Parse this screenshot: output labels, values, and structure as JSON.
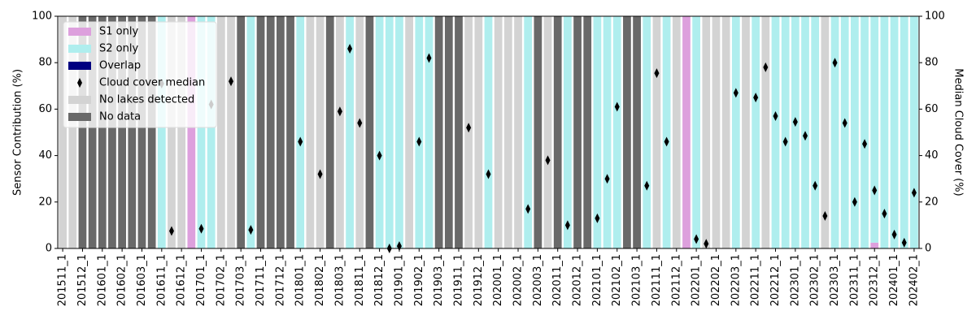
{
  "chart_data": {
    "type": "bar",
    "stacked": true,
    "ylabel": "Sensor Contribution (%)",
    "y2label": "Median Cloud Cover (%)",
    "ylim": [
      0,
      100
    ],
    "yticks": [
      0,
      20,
      40,
      60,
      80,
      100
    ],
    "y2lim": [
      0,
      100
    ],
    "y2ticks": [
      0,
      20,
      40,
      60,
      80,
      100
    ],
    "legend": "upper left",
    "categories": [
      "201511_1",
      null,
      "201512_1",
      null,
      "201601_1",
      null,
      "201602_1",
      null,
      "201603_1",
      null,
      "201611_1",
      null,
      "201612_1",
      null,
      "201701_1",
      null,
      "201702_1",
      null,
      "201703_1",
      null,
      "201711_1",
      null,
      "201712_1",
      null,
      "201801_1",
      null,
      "201802_1",
      null,
      "201803_1",
      null,
      "201811_1",
      null,
      "201812_1",
      null,
      "201901_1",
      null,
      "201902_1",
      null,
      "201903_1",
      null,
      "201911_1",
      null,
      "201912_1",
      null,
      "202001_1",
      null,
      "202002_1",
      null,
      "202003_1",
      null,
      "202011_1",
      null,
      "202012_1",
      null,
      "202101_1",
      null,
      "202102_1",
      null,
      "202103_1",
      null,
      "202111_1",
      null,
      "202112_1",
      null,
      "202201_1",
      null,
      "202202_1",
      null,
      "202203_1",
      null,
      "202211_1",
      null,
      "202212_1",
      null,
      "202301_1",
      null,
      "202302_1",
      null,
      "202303_1",
      null,
      "202311_1",
      null,
      "202312_1",
      null,
      "202401_1",
      null,
      "202402_1"
    ],
    "series": [
      {
        "name": "S1 only",
        "type": "bar",
        "color": "#dda0dd",
        "values": [
          0,
          0,
          0,
          0,
          0,
          0,
          0,
          0,
          0,
          0,
          0,
          0,
          0,
          100,
          0,
          0,
          0,
          0,
          0,
          0,
          0,
          0,
          0,
          0,
          0,
          0,
          0,
          0,
          0,
          0,
          0,
          0,
          0,
          0,
          0,
          0,
          0,
          0,
          0,
          0,
          0,
          0,
          0,
          0,
          0,
          0,
          0,
          0,
          0,
          0,
          0,
          0,
          0,
          0,
          0,
          0,
          0,
          0,
          0,
          0,
          0,
          0,
          0,
          100,
          0,
          0,
          0,
          0,
          0,
          0,
          0,
          0,
          0,
          0,
          0,
          0,
          0,
          0,
          0,
          0,
          0,
          0,
          2.5,
          0,
          0,
          0,
          0
        ]
      },
      {
        "name": "S2 only",
        "type": "bar",
        "color": "#afeeee",
        "values": [
          0,
          0,
          0,
          0,
          0,
          0,
          0,
          0,
          0,
          0,
          100,
          0,
          0,
          0,
          100,
          100,
          0,
          0,
          0,
          100,
          0,
          0,
          0,
          0,
          100,
          0,
          0,
          0,
          0,
          100,
          0,
          0,
          100,
          100,
          100,
          0,
          100,
          100,
          0,
          0,
          0,
          0,
          0,
          100,
          0,
          0,
          0,
          100,
          0,
          0,
          0,
          100,
          0,
          0,
          100,
          100,
          100,
          0,
          0,
          100,
          0,
          100,
          0,
          0,
          100,
          0,
          0,
          0,
          100,
          0,
          100,
          0,
          100,
          100,
          100,
          100,
          100,
          0,
          100,
          100,
          100,
          100,
          97.5,
          100,
          100,
          100,
          100
        ]
      },
      {
        "name": "Overlap",
        "type": "bar",
        "color": "#000080",
        "values": [
          0,
          0,
          0,
          0,
          0,
          0,
          0,
          0,
          0,
          0,
          0,
          0,
          0,
          0,
          0,
          0,
          0,
          0,
          0,
          0,
          0,
          0,
          0,
          0,
          0,
          0,
          0,
          0,
          0,
          0,
          0,
          0,
          0,
          0,
          0,
          0,
          0,
          0,
          0,
          0,
          0,
          0,
          0,
          0,
          0,
          0,
          0,
          0,
          0,
          0,
          0,
          0,
          0,
          0,
          0,
          0,
          0,
          0,
          0,
          0,
          0,
          0,
          0,
          0,
          0,
          0,
          0,
          0,
          0,
          0,
          0,
          0,
          0,
          0,
          0,
          0,
          0,
          0,
          0,
          0,
          0,
          0,
          0,
          0,
          0,
          0,
          0
        ]
      },
      {
        "name": "Cloud cover median",
        "type": "scatter",
        "axis": "y2",
        "color": "#000000",
        "values": [
          null,
          null,
          null,
          null,
          null,
          null,
          null,
          null,
          null,
          null,
          71,
          7.5,
          null,
          null,
          8.5,
          62,
          null,
          72,
          null,
          8,
          null,
          null,
          null,
          null,
          46,
          null,
          32,
          null,
          59,
          86,
          54,
          null,
          40,
          0,
          1,
          null,
          46,
          82,
          null,
          null,
          null,
          52,
          null,
          32,
          null,
          null,
          null,
          17,
          null,
          38,
          null,
          10,
          null,
          null,
          13,
          30,
          61,
          null,
          null,
          27,
          75.5,
          46,
          null,
          null,
          4,
          2,
          null,
          null,
          67,
          null,
          65,
          78,
          57,
          46,
          54.5,
          48.5,
          27,
          14,
          80,
          54,
          20,
          45,
          25,
          15,
          6,
          2.5,
          24
        ]
      },
      {
        "name": "No lakes detected",
        "type": "bar",
        "color": "#d3d3d3",
        "values": [
          100,
          100,
          0,
          0,
          0,
          0,
          0,
          0,
          0,
          0,
          0,
          100,
          100,
          0,
          0,
          0,
          100,
          100,
          0,
          0,
          0,
          0,
          0,
          0,
          0,
          100,
          100,
          0,
          100,
          0,
          100,
          0,
          0,
          0,
          0,
          100,
          0,
          0,
          0,
          0,
          0,
          100,
          100,
          0,
          100,
          100,
          100,
          0,
          0,
          100,
          0,
          0,
          0,
          0,
          0,
          0,
          0,
          0,
          0,
          0,
          100,
          0,
          100,
          0,
          0,
          100,
          100,
          100,
          0,
          100,
          0,
          100,
          0,
          0,
          0,
          0,
          0,
          100,
          0,
          0,
          0,
          0,
          0,
          0,
          0,
          0,
          0
        ]
      },
      {
        "name": "No data",
        "type": "bar",
        "color": "#696969",
        "values": [
          0,
          0,
          100,
          100,
          100,
          100,
          100,
          100,
          100,
          100,
          0,
          0,
          0,
          0,
          0,
          0,
          0,
          0,
          100,
          0,
          100,
          100,
          100,
          100,
          0,
          0,
          0,
          100,
          0,
          0,
          0,
          100,
          0,
          0,
          0,
          0,
          0,
          0,
          100,
          100,
          100,
          0,
          0,
          0,
          0,
          0,
          0,
          0,
          100,
          0,
          100,
          0,
          100,
          100,
          0,
          0,
          0,
          100,
          100,
          0,
          0,
          0,
          0,
          0,
          0,
          0,
          0,
          0,
          0,
          0,
          0,
          0,
          0,
          0,
          0,
          0,
          0,
          0,
          0,
          0,
          0,
          0,
          0,
          0,
          0,
          0,
          0
        ]
      }
    ]
  }
}
